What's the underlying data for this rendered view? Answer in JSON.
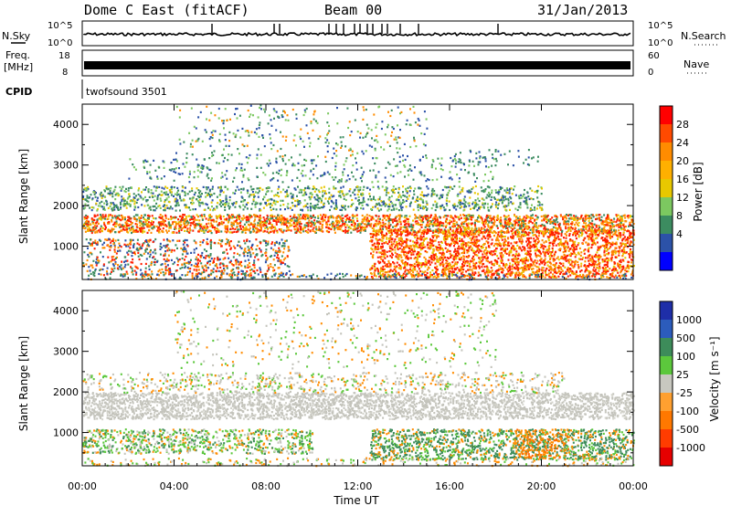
{
  "header": {
    "station": "Dome C East (fitACF)",
    "beam": "Beam 00",
    "date": "31/Jan/2013"
  },
  "top_panels": {
    "nsky": {
      "label": "N.Sky",
      "tick_top": "10^5",
      "tick_bottom": "10^0"
    },
    "nsearch": {
      "label": "N.Search",
      "tick_top": "10^5",
      "tick_bottom": "10^0"
    },
    "freq": {
      "label_line1": "Freq.",
      "label_line2": "[MHz]",
      "tick_top": "18",
      "tick_bottom": "8"
    },
    "nave": {
      "label": "Nave",
      "tick_top": "60",
      "tick_bottom": "0"
    },
    "cpid": {
      "label": "CPID",
      "value": "twofsound 3501"
    }
  },
  "chart_data": [
    {
      "type": "heatmap",
      "title": "",
      "xlabel": "",
      "ylabel": "Slant Range [km]",
      "x_ticks": [
        "00:00",
        "04:00",
        "08:00",
        "12:00",
        "16:00",
        "20:00",
        "00:00"
      ],
      "y_ticks": [
        "1000",
        "2000",
        "3000",
        "4000"
      ],
      "ylim": [
        180,
        4500
      ],
      "colorbar": {
        "label": "Power [dB]",
        "tick_labels": [
          "28",
          "24",
          "20",
          "16",
          "12",
          "8",
          "4"
        ],
        "colors": [
          "#ff0000",
          "#ff4a00",
          "#ff8c00",
          "#ffb000",
          "#e8c800",
          "#7cc860",
          "#3c8c60",
          "#2c52a8",
          "#0000ff"
        ]
      }
    },
    {
      "type": "heatmap",
      "title": "",
      "xlabel": "Time UT",
      "ylabel": "Slant Range [km]",
      "x_ticks": [
        "00:00",
        "04:00",
        "08:00",
        "12:00",
        "16:00",
        "20:00",
        "00:00"
      ],
      "y_ticks": [
        "1000",
        "2000",
        "3000",
        "4000"
      ],
      "ylim": [
        180,
        4500
      ],
      "colorbar": {
        "label": "Velocity [m s⁻¹]",
        "tick_labels": [
          "1000",
          "500",
          "100",
          "25",
          "-25",
          "-100",
          "-500",
          "-1000"
        ],
        "colors": [
          "#1e2ea8",
          "#2c5cbc",
          "#3d8c5a",
          "#5cc83c",
          "#c8c8c0",
          "#ffa030",
          "#ff7800",
          "#ff3c00",
          "#e60000"
        ]
      }
    }
  ],
  "colors": {
    "pw_red": "#ff1e00",
    "pw_orange": "#ff8c00",
    "pw_yellow": "#e8c800",
    "pw_green": "#3c8c60",
    "pw_blue": "#2c52a8",
    "vel_grey": "#c4c4bc",
    "vel_green": "#5cc83c",
    "vel_dkgreen": "#3d8c5a",
    "vel_orange": "#ff8c00"
  }
}
